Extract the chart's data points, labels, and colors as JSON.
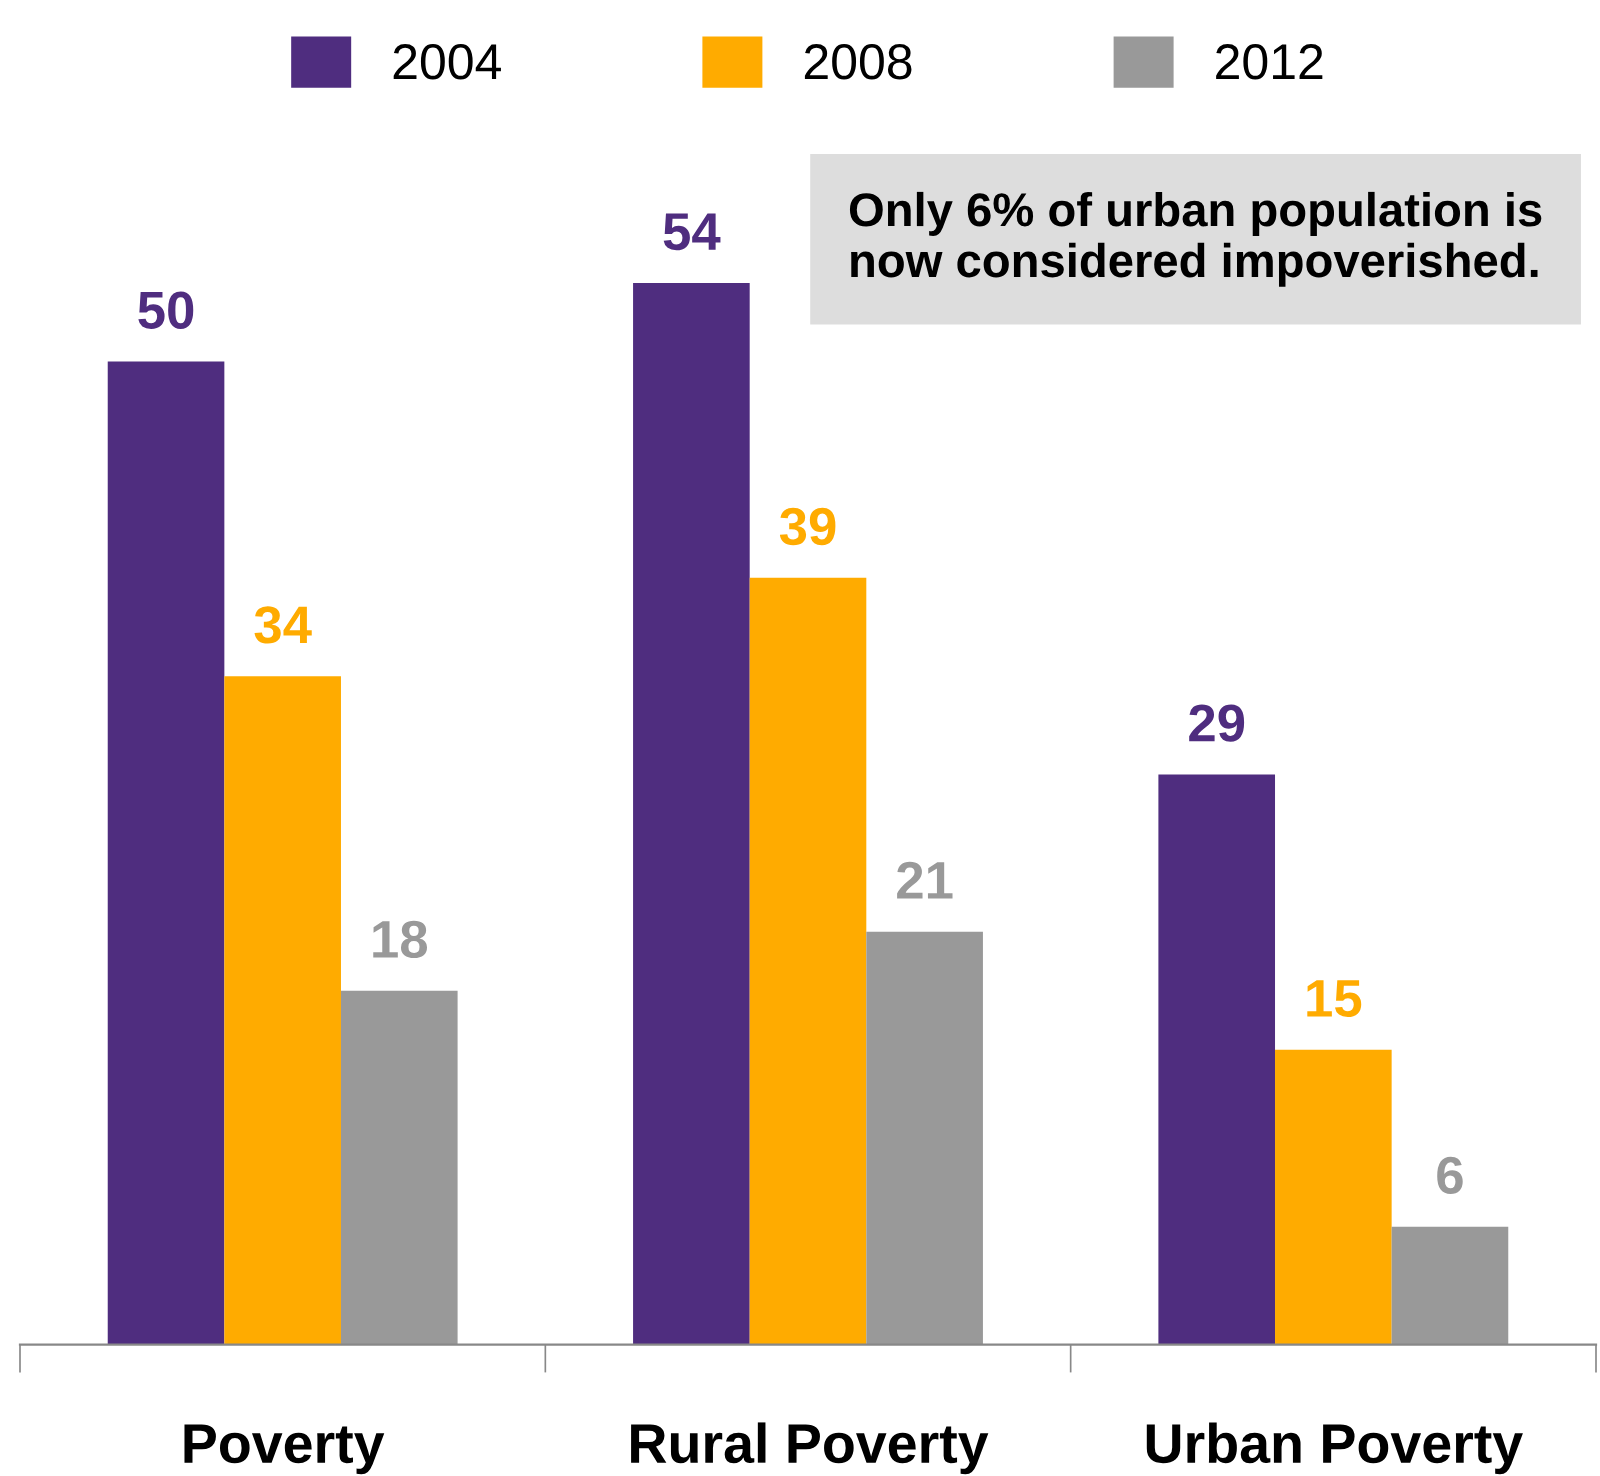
{
  "chart_data": {
    "type": "bar",
    "categories": [
      "Poverty",
      "Rural Poverty",
      "Urban Poverty"
    ],
    "series": [
      {
        "name": "2004",
        "color": "#4f2d7f",
        "values": [
          50,
          54,
          29
        ]
      },
      {
        "name": "2008",
        "color": "#ffab00",
        "values": [
          34,
          39,
          15
        ]
      },
      {
        "name": "2012",
        "color": "#999999",
        "values": [
          18,
          21,
          6
        ]
      }
    ],
    "data_labels": true,
    "legend": "top",
    "grid": false,
    "annotations": [
      "Only 6% of urban population is now considered impoverished."
    ]
  }
}
